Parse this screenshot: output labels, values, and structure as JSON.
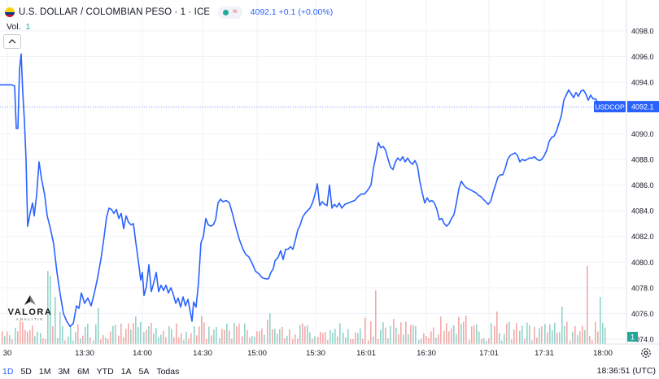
{
  "header": {
    "symbol": "U.S. DOLLAR / COLOMBIAN PESO · 1 · ICE",
    "quote": "4092.1 +0.1 (+0.00%)",
    "wave_icon": "≈"
  },
  "volume": {
    "label": "Vol.",
    "value": "1"
  },
  "footer": {
    "timeframes": [
      "1D",
      "5D",
      "1M",
      "3M",
      "6M",
      "YTD",
      "1A",
      "5A",
      "Todas"
    ],
    "active": "1D",
    "clock": "18:36:51 (UTC)"
  },
  "logo": {
    "name": "VALORA",
    "sub": "ANALITIK"
  },
  "colors": {
    "line": "#2962ff",
    "up": "#26a69a",
    "down": "#ef5350",
    "price_tag": "#2962ff",
    "last_line": "#2962ff"
  },
  "chart_data": {
    "type": "line",
    "series": [
      {
        "name": "USDCOP"
      }
    ],
    "x_ticks": [
      "30",
      "13:30",
      "14:00",
      "14:30",
      "15:00",
      "15:30",
      "16:01",
      "16:30",
      "17:01",
      "17:31",
      "18:00"
    ],
    "y_ticks": [
      "4098.0",
      "4096.0",
      "4094.0",
      "4092.0",
      "4090.0",
      "4088.0",
      "4086.0",
      "4084.0",
      "4082.0",
      "4080.0",
      "4078.0",
      "4076.0",
      "4074.0"
    ],
    "ylim": [
      4073.0,
      4099.0
    ],
    "last_price": {
      "label": "USDCOP",
      "value": "4092.1",
      "level": 4092.1
    },
    "volume_last": "1",
    "price_points": [
      [
        0,
        4093.8
      ],
      [
        7,
        4093.8
      ],
      [
        14,
        4093.8
      ],
      [
        18,
        4093.7
      ],
      [
        20,
        4090.4
      ],
      [
        22,
        4090.4
      ],
      [
        24,
        4095.0
      ],
      [
        26,
        4096.2
      ],
      [
        28,
        4093.2
      ],
      [
        30,
        4091.0
      ],
      [
        32,
        4088.0
      ],
      [
        34,
        4082.8
      ],
      [
        37,
        4083.8
      ],
      [
        40,
        4084.6
      ],
      [
        42,
        4083.6
      ],
      [
        45,
        4085.2
      ],
      [
        48,
        4087.8
      ],
      [
        51,
        4086.5
      ],
      [
        55,
        4085.2
      ],
      [
        58,
        4083.6
      ],
      [
        62,
        4082.6
      ],
      [
        66,
        4081.4
      ],
      [
        70,
        4079.2
      ],
      [
        74,
        4077.5
      ],
      [
        78,
        4076.0
      ],
      [
        82,
        4075.4
      ],
      [
        86,
        4075.0
      ],
      [
        90,
        4075.2
      ],
      [
        94,
        4076.6
      ],
      [
        97,
        4076.4
      ],
      [
        100,
        4077.6
      ],
      [
        104,
        4076.8
      ],
      [
        108,
        4077.2
      ],
      [
        112,
        4076.6
      ],
      [
        116,
        4077.6
      ],
      [
        120,
        4078.8
      ],
      [
        124,
        4080.2
      ],
      [
        128,
        4082.0
      ],
      [
        131,
        4083.5
      ],
      [
        134,
        4084.2
      ],
      [
        137,
        4084.1
      ],
      [
        140,
        4083.8
      ],
      [
        143,
        4084.1
      ],
      [
        146,
        4083.4
      ],
      [
        149,
        4083.8
      ],
      [
        152,
        4082.6
      ],
      [
        155,
        4083.6
      ],
      [
        158,
        4083.1
      ],
      [
        161,
        4082.9
      ],
      [
        164,
        4083.0
      ],
      [
        167,
        4081.5
      ],
      [
        170,
        4080.1
      ],
      [
        173,
        4078.6
      ],
      [
        175,
        4079.2
      ],
      [
        177,
        4077.4
      ],
      [
        180,
        4078.1
      ],
      [
        183,
        4079.8
      ],
      [
        186,
        4077.7
      ],
      [
        189,
        4078.4
      ],
      [
        192,
        4079.2
      ],
      [
        195,
        4077.7
      ],
      [
        198,
        4078.2
      ],
      [
        201,
        4077.8
      ],
      [
        204,
        4078.2
      ],
      [
        207,
        4077.6
      ],
      [
        210,
        4078.0
      ],
      [
        213,
        4077.5
      ],
      [
        216,
        4076.8
      ],
      [
        219,
        4077.2
      ],
      [
        222,
        4076.5
      ],
      [
        225,
        4077.3
      ],
      [
        228,
        4076.6
      ],
      [
        231,
        4077.1
      ],
      [
        234,
        4076.1
      ],
      [
        236,
        4075.4
      ],
      [
        238,
        4076.9
      ],
      [
        241,
        4076.5
      ],
      [
        244,
        4078.4
      ],
      [
        247,
        4081.5
      ],
      [
        250,
        4082.0
      ],
      [
        253,
        4083.4
      ],
      [
        256,
        4082.9
      ],
      [
        259,
        4082.8
      ],
      [
        262,
        4082.9
      ],
      [
        265,
        4083.3
      ],
      [
        268,
        4084.6
      ],
      [
        271,
        4084.9
      ],
      [
        274,
        4084.7
      ],
      [
        278,
        4084.8
      ],
      [
        282,
        4084.6
      ],
      [
        286,
        4083.7
      ],
      [
        290,
        4082.7
      ],
      [
        294,
        4081.8
      ],
      [
        298,
        4081.1
      ],
      [
        302,
        4080.6
      ],
      [
        306,
        4080.4
      ],
      [
        310,
        4079.9
      ],
      [
        314,
        4079.3
      ],
      [
        318,
        4079.1
      ],
      [
        322,
        4078.8
      ],
      [
        326,
        4078.7
      ],
      [
        330,
        4078.7
      ],
      [
        333,
        4079.2
      ],
      [
        336,
        4079.5
      ],
      [
        338,
        4080.1
      ],
      [
        342,
        4080.4
      ],
      [
        345,
        4080.9
      ],
      [
        348,
        4080.2
      ],
      [
        351,
        4081.0
      ],
      [
        354,
        4081.0
      ],
      [
        357,
        4081.2
      ],
      [
        360,
        4081.0
      ],
      [
        363,
        4081.7
      ],
      [
        366,
        4082.5
      ],
      [
        369,
        4082.9
      ],
      [
        372,
        4083.5
      ],
      [
        375,
        4083.8
      ],
      [
        378,
        4084.0
      ],
      [
        381,
        4084.2
      ],
      [
        384,
        4084.6
      ],
      [
        386,
        4085.0
      ],
      [
        388,
        4085.5
      ],
      [
        390,
        4086.1
      ],
      [
        393,
        4084.4
      ],
      [
        396,
        4084.7
      ],
      [
        399,
        4084.5
      ],
      [
        402,
        4084.4
      ],
      [
        405,
        4086.0
      ],
      [
        408,
        4084.2
      ],
      [
        411,
        4084.5
      ],
      [
        414,
        4084.3
      ],
      [
        417,
        4084.6
      ],
      [
        420,
        4084.2
      ],
      [
        424,
        4084.5
      ],
      [
        428,
        4084.6
      ],
      [
        432,
        4084.7
      ],
      [
        436,
        4084.8
      ],
      [
        440,
        4085.1
      ],
      [
        444,
        4085.3
      ],
      [
        448,
        4085.3
      ],
      [
        452,
        4085.6
      ],
      [
        456,
        4086.0
      ],
      [
        459,
        4087.3
      ],
      [
        462,
        4088.2
      ],
      [
        465,
        4089.3
      ],
      [
        468,
        4088.9
      ],
      [
        471,
        4089.0
      ],
      [
        474,
        4088.7
      ],
      [
        477,
        4088.0
      ],
      [
        480,
        4087.4
      ],
      [
        483,
        4087.2
      ],
      [
        486,
        4087.8
      ],
      [
        489,
        4088.1
      ],
      [
        492,
        4087.9
      ],
      [
        495,
        4088.2
      ],
      [
        498,
        4087.8
      ],
      [
        501,
        4088.1
      ],
      [
        504,
        4087.8
      ],
      [
        507,
        4087.6
      ],
      [
        510,
        4087.9
      ],
      [
        513,
        4087.5
      ],
      [
        516,
        4086.3
      ],
      [
        519,
        4085.4
      ],
      [
        522,
        4084.6
      ],
      [
        525,
        4085.0
      ],
      [
        528,
        4084.7
      ],
      [
        531,
        4084.8
      ],
      [
        534,
        4084.6
      ],
      [
        537,
        4084.1
      ],
      [
        540,
        4083.3
      ],
      [
        543,
        4083.4
      ],
      [
        546,
        4083.0
      ],
      [
        549,
        4082.8
      ],
      [
        552,
        4083.0
      ],
      [
        555,
        4083.4
      ],
      [
        558,
        4083.7
      ],
      [
        561,
        4084.6
      ],
      [
        564,
        4085.7
      ],
      [
        567,
        4086.3
      ],
      [
        570,
        4086.0
      ],
      [
        573,
        4085.8
      ],
      [
        576,
        4085.7
      ],
      [
        579,
        4085.6
      ],
      [
        582,
        4085.5
      ],
      [
        585,
        4085.4
      ],
      [
        588,
        4085.2
      ],
      [
        591,
        4085.1
      ],
      [
        594,
        4084.9
      ],
      [
        597,
        4084.7
      ],
      [
        600,
        4084.5
      ],
      [
        603,
        4084.7
      ],
      [
        606,
        4085.4
      ],
      [
        609,
        4086.0
      ],
      [
        612,
        4086.6
      ],
      [
        615,
        4086.8
      ],
      [
        618,
        4086.8
      ],
      [
        621,
        4087.3
      ],
      [
        624,
        4088.0
      ],
      [
        627,
        4088.3
      ],
      [
        630,
        4088.4
      ],
      [
        633,
        4088.5
      ],
      [
        636,
        4088.3
      ],
      [
        639,
        4087.8
      ],
      [
        642,
        4088.0
      ],
      [
        645,
        4087.9
      ],
      [
        648,
        4088.0
      ],
      [
        651,
        4088.1
      ],
      [
        654,
        4088.1
      ],
      [
        657,
        4088.2
      ],
      [
        660,
        4088.0
      ],
      [
        663,
        4087.9
      ],
      [
        666,
        4088.0
      ],
      [
        669,
        4088.3
      ],
      [
        672,
        4088.7
      ],
      [
        675,
        4089.4
      ],
      [
        678,
        4089.7
      ],
      [
        681,
        4089.8
      ],
      [
        684,
        4090.2
      ],
      [
        687,
        4090.8
      ],
      [
        690,
        4091.4
      ],
      [
        693,
        4092.6
      ],
      [
        696,
        4093.0
      ],
      [
        699,
        4093.4
      ],
      [
        702,
        4093.1
      ],
      [
        705,
        4092.8
      ],
      [
        708,
        4093.2
      ],
      [
        711,
        4092.9
      ],
      [
        714,
        4093.3
      ],
      [
        717,
        4093.4
      ],
      [
        720,
        4093.1
      ],
      [
        723,
        4092.6
      ],
      [
        726,
        4093.0
      ],
      [
        729,
        4092.7
      ],
      [
        732,
        4092.7
      ],
      [
        735,
        4092.4
      ],
      [
        738,
        4092.3
      ],
      [
        741,
        4092.2
      ],
      [
        744,
        4092.1
      ]
    ]
  }
}
